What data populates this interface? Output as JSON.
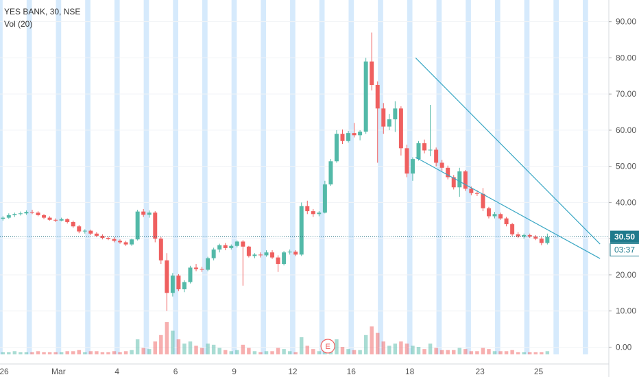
{
  "legend": {
    "symbol_line": "YES BANK, 30, NSE",
    "volume_line": "Vol (20)"
  },
  "price_marker": {
    "label": "30.50",
    "value": 30.5,
    "countdown": "03:37"
  },
  "earnings_marker": {
    "label": "E"
  },
  "colors": {
    "up": "#53b9a8",
    "down": "#ef5f5f",
    "session_band": "#cfe6fb",
    "trendline": "#3aa7c4",
    "price_line": "#1f6f80",
    "price_tag_bg": "#1f7a8c",
    "axis_text": "#555555",
    "grid": "#f1f3f6"
  },
  "chart_data": {
    "type": "candlestick",
    "y_ticks": [
      "90.00",
      "80.00",
      "70.00",
      "60.00",
      "50.00",
      "40.00",
      "30.00",
      "20.00",
      "10.00",
      "0.00"
    ],
    "y_tick_values": [
      90,
      80,
      70,
      60,
      50,
      40,
      30,
      20,
      10,
      0
    ],
    "ylim": [
      -2,
      96
    ],
    "x_ticks": [
      "26",
      "Mar",
      "4",
      "6",
      "9",
      "12",
      "16",
      "18",
      "23",
      "25"
    ],
    "x_tick_positions": [
      0,
      10,
      20,
      30,
      40,
      50,
      60,
      70,
      82,
      92
    ],
    "x_range": [
      0,
      104
    ],
    "session_bands": [
      0,
      5,
      10,
      15,
      20,
      25,
      30,
      35,
      40,
      45,
      50,
      55,
      60,
      65,
      70,
      75,
      80,
      85,
      90,
      95,
      100
    ],
    "candles": [
      [
        35.5,
        36.2,
        35.0,
        35.8,
        2
      ],
      [
        35.8,
        37.0,
        35.5,
        36.5,
        2
      ],
      [
        36.5,
        37.2,
        36.0,
        36.8,
        3
      ],
      [
        36.8,
        37.5,
        36.4,
        37.0,
        2
      ],
      [
        37.0,
        37.8,
        36.6,
        37.4,
        2
      ],
      [
        37.4,
        38.0,
        36.8,
        37.2,
        2
      ],
      [
        37.2,
        37.6,
        36.2,
        36.5,
        3
      ],
      [
        36.5,
        36.8,
        35.4,
        35.8,
        2
      ],
      [
        35.8,
        36.2,
        35.0,
        35.2,
        2
      ],
      [
        35.2,
        35.6,
        34.6,
        35.0,
        2
      ],
      [
        35.0,
        35.8,
        34.8,
        35.4,
        2
      ],
      [
        35.4,
        35.6,
        34.2,
        34.6,
        3
      ],
      [
        34.6,
        35.0,
        33.0,
        33.4,
        3
      ],
      [
        33.4,
        33.8,
        31.5,
        32.0,
        4
      ],
      [
        32.0,
        32.6,
        31.4,
        32.2,
        2
      ],
      [
        32.2,
        32.5,
        31.0,
        31.4,
        3
      ],
      [
        31.4,
        31.8,
        30.4,
        30.8,
        3
      ],
      [
        30.8,
        31.2,
        29.8,
        30.2,
        2
      ],
      [
        30.2,
        30.6,
        29.6,
        29.9,
        2
      ],
      [
        29.9,
        30.4,
        29.0,
        29.4,
        3
      ],
      [
        29.4,
        29.8,
        28.6,
        29.0,
        2
      ],
      [
        29.0,
        29.4,
        28.0,
        28.4,
        3
      ],
      [
        28.4,
        30.0,
        28.0,
        29.8,
        4
      ],
      [
        29.8,
        38.0,
        29.5,
        37.5,
        14
      ],
      [
        37.5,
        38.2,
        36.0,
        36.6,
        6
      ],
      [
        36.6,
        37.8,
        35.8,
        37.2,
        5
      ],
      [
        37.2,
        37.6,
        29.0,
        30.0,
        12
      ],
      [
        30.0,
        30.5,
        23.0,
        24.0,
        18
      ],
      [
        24.0,
        26.0,
        10.0,
        15.0,
        30
      ],
      [
        15.0,
        20.5,
        14.0,
        19.8,
        22
      ],
      [
        19.8,
        20.2,
        15.5,
        16.0,
        14
      ],
      [
        16.0,
        18.5,
        15.2,
        18.0,
        10
      ],
      [
        18.0,
        22.5,
        17.6,
        22.0,
        12
      ],
      [
        22.0,
        23.0,
        21.0,
        21.6,
        8
      ],
      [
        21.6,
        22.2,
        20.8,
        21.4,
        6
      ],
      [
        21.4,
        25.0,
        21.0,
        24.6,
        10
      ],
      [
        24.6,
        27.5,
        24.0,
        27.0,
        9
      ],
      [
        27.0,
        28.6,
        26.2,
        28.2,
        6
      ],
      [
        28.2,
        28.8,
        26.8,
        27.4,
        4
      ],
      [
        27.4,
        28.4,
        27.0,
        28.0,
        3
      ],
      [
        28.0,
        29.5,
        27.6,
        29.2,
        4
      ],
      [
        29.2,
        29.6,
        17.0,
        27.8,
        9
      ],
      [
        27.8,
        28.0,
        24.8,
        25.2,
        6
      ],
      [
        25.2,
        26.0,
        24.6,
        25.6,
        3
      ],
      [
        25.6,
        26.2,
        24.8,
        25.4,
        2
      ],
      [
        25.4,
        26.8,
        25.0,
        26.2,
        3
      ],
      [
        26.2,
        26.8,
        24.4,
        24.8,
        3
      ],
      [
        24.8,
        25.4,
        20.8,
        23.0,
        6
      ],
      [
        23.0,
        26.6,
        22.6,
        26.2,
        5
      ],
      [
        26.2,
        27.0,
        25.6,
        26.4,
        3
      ],
      [
        26.4,
        26.8,
        25.2,
        25.6,
        2
      ],
      [
        25.6,
        40.0,
        25.2,
        39.0,
        16
      ],
      [
        39.0,
        40.5,
        36.8,
        37.6,
        8
      ],
      [
        37.6,
        38.2,
        36.0,
        36.8,
        5
      ],
      [
        36.8,
        37.6,
        36.2,
        37.2,
        3
      ],
      [
        37.2,
        46.0,
        37.0,
        45.0,
        10
      ],
      [
        45.0,
        52.0,
        44.6,
        51.4,
        12
      ],
      [
        51.4,
        60.0,
        51.0,
        59.0,
        14
      ],
      [
        59.0,
        60.2,
        56.2,
        57.0,
        7
      ],
      [
        57.0,
        59.8,
        56.6,
        59.2,
        5
      ],
      [
        59.2,
        62.0,
        58.0,
        58.6,
        4
      ],
      [
        58.6,
        60.0,
        57.2,
        59.6,
        4
      ],
      [
        59.6,
        80.0,
        59.0,
        79.0,
        18
      ],
      [
        79.0,
        87.0,
        71.0,
        72.5,
        26
      ],
      [
        72.5,
        73.5,
        51.0,
        66.0,
        20
      ],
      [
        66.0,
        67.5,
        59.0,
        61.0,
        12
      ],
      [
        61.0,
        64.5,
        60.0,
        63.0,
        8
      ],
      [
        63.0,
        68.0,
        59.5,
        66.0,
        10
      ],
      [
        66.0,
        66.6,
        53.0,
        55.0,
        12
      ],
      [
        55.0,
        56.0,
        47.0,
        48.0,
        10
      ],
      [
        48.0,
        52.5,
        46.0,
        52.0,
        8
      ],
      [
        52.0,
        57.0,
        51.6,
        56.4,
        7
      ],
      [
        56.4,
        57.4,
        53.6,
        54.4,
        5
      ],
      [
        54.4,
        67.0,
        52.8,
        54.6,
        10
      ],
      [
        54.6,
        55.2,
        50.0,
        51.0,
        6
      ],
      [
        51.0,
        51.8,
        48.8,
        49.6,
        4
      ],
      [
        49.6,
        50.2,
        46.4,
        47.0,
        4
      ],
      [
        47.0,
        47.6,
        43.6,
        44.2,
        4
      ],
      [
        44.2,
        49.6,
        41.6,
        48.6,
        6
      ],
      [
        48.6,
        49.0,
        43.2,
        43.8,
        5
      ],
      [
        43.8,
        44.4,
        42.0,
        42.6,
        3
      ],
      [
        42.6,
        43.4,
        41.8,
        42.4,
        3
      ],
      [
        42.4,
        44.0,
        37.6,
        38.4,
        6
      ],
      [
        38.4,
        38.8,
        35.6,
        36.2,
        5
      ],
      [
        36.2,
        37.4,
        35.6,
        36.8,
        3
      ],
      [
        36.8,
        37.2,
        35.2,
        35.6,
        3
      ],
      [
        35.6,
        36.0,
        33.4,
        34.0,
        3
      ],
      [
        34.0,
        34.4,
        30.8,
        31.2,
        4
      ],
      [
        31.2,
        31.8,
        30.2,
        30.6,
        2
      ],
      [
        30.6,
        31.4,
        30.0,
        31.0,
        2
      ],
      [
        31.0,
        31.4,
        30.2,
        30.6,
        2
      ],
      [
        30.6,
        31.0,
        29.6,
        30.0,
        2
      ],
      [
        30.0,
        30.4,
        28.2,
        28.8,
        2
      ],
      [
        28.8,
        31.4,
        28.4,
        30.5,
        3
      ]
    ],
    "trendlines": [
      {
        "from": [
          71,
          80.0
        ],
        "to": [
          102.5,
          28.5
        ]
      },
      {
        "from": [
          71,
          52.5
        ],
        "to": [
          102.5,
          24.5
        ]
      }
    ]
  }
}
